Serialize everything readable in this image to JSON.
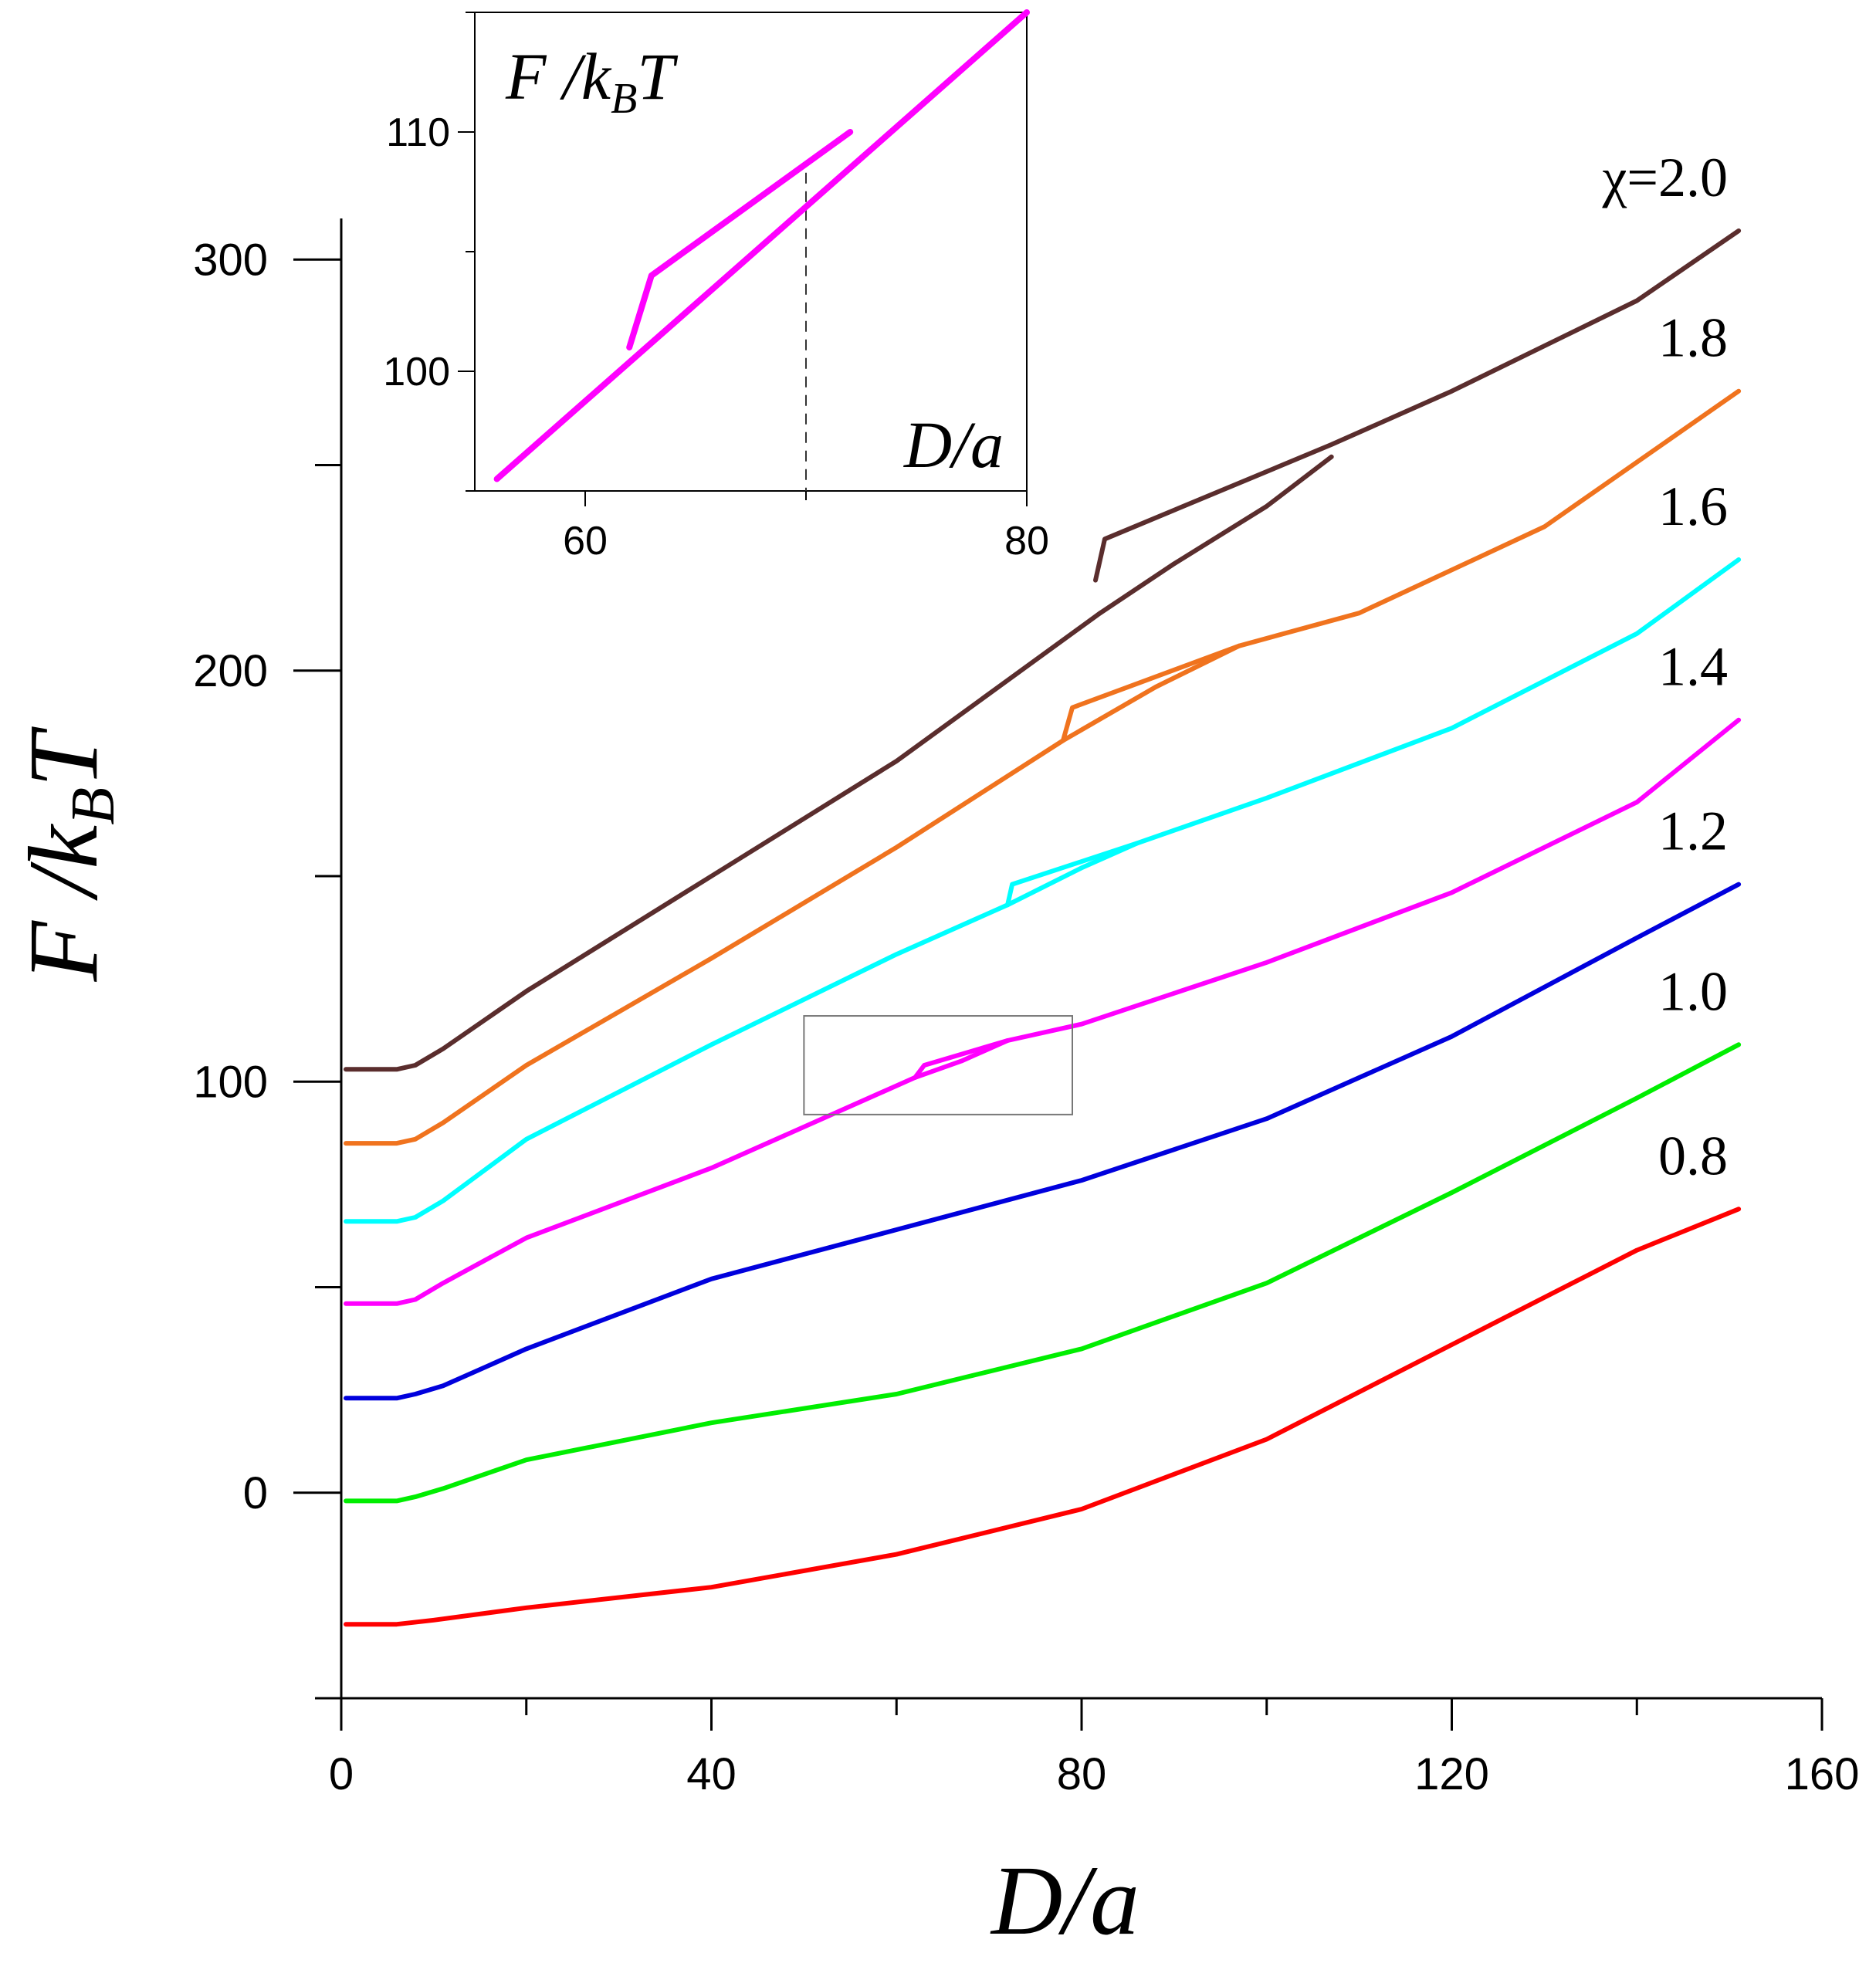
{
  "chart_data": [
    {
      "type": "line",
      "xlabel": "D/a",
      "ylabel": "F /k_BT",
      "ylabel_parts": {
        "f": "F /k",
        "sub": "B",
        "t": "T"
      },
      "xlim": [
        0,
        160
      ],
      "ylim": [
        -50,
        310
      ],
      "x_ticks": [
        0,
        40,
        80,
        120,
        160
      ],
      "x_tick_labels": [
        "0",
        "40",
        "80",
        "120",
        "160"
      ],
      "x_minor_ticks": [
        20,
        60,
        100,
        140
      ],
      "y_ticks": [
        0,
        100,
        200,
        300
      ],
      "y_tick_labels": [
        "0",
        "100",
        "200",
        "300"
      ],
      "y_minor_ticks": [
        -50,
        50,
        150,
        250
      ],
      "zoom_box": {
        "x": [
          50,
          79
        ],
        "y": [
          92,
          116
        ]
      },
      "series": [
        {
          "name": "χ=2.0",
          "label": "χ=2.0",
          "color": "#5a2d2d",
          "points": [
            [
              0.5,
              103
            ],
            [
              6,
              103
            ],
            [
              8,
              104
            ],
            [
              11,
              108
            ],
            [
              20,
              122
            ],
            [
              40,
              150
            ],
            [
              60,
              178
            ],
            [
              82,
              214
            ]
          ],
          "branch_upper": [
            [
              81.5,
              222
            ],
            [
              82.5,
              232
            ],
            [
              107,
              255
            ],
            [
              120,
              268
            ],
            [
              140,
              290
            ],
            [
              151,
              307
            ]
          ],
          "branch_lower": [
            [
              82,
              214
            ],
            [
              90,
              226
            ],
            [
              100,
              240
            ],
            [
              107,
              252
            ]
          ]
        },
        {
          "name": "1.8",
          "label": "1.8",
          "color": "#f0731e",
          "points": [
            [
              0.5,
              85
            ],
            [
              6,
              85
            ],
            [
              8,
              86
            ],
            [
              11,
              90
            ],
            [
              20,
              104
            ],
            [
              40,
              130
            ],
            [
              60,
              157
            ],
            [
              78,
              183
            ]
          ],
          "branch_upper": [
            [
              78,
              183
            ],
            [
              79,
              191
            ],
            [
              97,
              206
            ],
            [
              110,
              214
            ],
            [
              130,
              235
            ],
            [
              151,
              268
            ]
          ],
          "branch_lower": [
            [
              78,
              183
            ],
            [
              88,
              196
            ],
            [
              97,
              206
            ]
          ]
        },
        {
          "name": "1.6",
          "label": "1.6",
          "color": "#00ffff",
          "points": [
            [
              0.5,
              66
            ],
            [
              6,
              66
            ],
            [
              8,
              67
            ],
            [
              11,
              71
            ],
            [
              20,
              86
            ],
            [
              40,
              109
            ],
            [
              60,
              131
            ],
            [
              72,
              143
            ]
          ],
          "branch_upper": [
            [
              72,
              143
            ],
            [
              72.5,
              148
            ],
            [
              86,
              158
            ],
            [
              100,
              169
            ],
            [
              120,
              186
            ],
            [
              140,
              209
            ],
            [
              151,
              227
            ]
          ],
          "branch_lower": [
            [
              72,
              143
            ],
            [
              80,
              152
            ],
            [
              86,
              158
            ]
          ]
        },
        {
          "name": "1.4",
          "label": "1.4",
          "color": "#ff00ff",
          "points": [
            [
              0.5,
              46
            ],
            [
              6,
              46
            ],
            [
              8,
              47
            ],
            [
              11,
              51
            ],
            [
              20,
              62
            ],
            [
              40,
              79
            ],
            [
              62,
              101
            ]
          ],
          "branch_upper": [
            [
              62,
              101
            ],
            [
              63,
              104
            ],
            [
              72,
              110
            ],
            [
              80,
              114
            ],
            [
              100,
              129
            ],
            [
              120,
              146
            ],
            [
              140,
              168
            ],
            [
              151,
              188
            ]
          ],
          "branch_lower": [
            [
              62,
              101
            ],
            [
              67,
              105
            ],
            [
              72,
              110
            ]
          ]
        },
        {
          "name": "1.2",
          "label": "1.2",
          "color": "#0000dd",
          "points": [
            [
              0.5,
              23
            ],
            [
              6,
              23
            ],
            [
              8,
              24
            ],
            [
              11,
              26
            ],
            [
              20,
              35
            ],
            [
              40,
              52
            ],
            [
              60,
              64
            ],
            [
              80,
              76
            ],
            [
              100,
              91
            ],
            [
              120,
              111
            ],
            [
              140,
              135
            ],
            [
              151,
              148
            ]
          ]
        },
        {
          "name": "1.0",
          "label": "1.0",
          "color": "#00ee00",
          "points": [
            [
              0.5,
              -2
            ],
            [
              6,
              -2
            ],
            [
              8,
              -1
            ],
            [
              11,
              1
            ],
            [
              20,
              8
            ],
            [
              40,
              17
            ],
            [
              60,
              24
            ],
            [
              80,
              35
            ],
            [
              100,
              51
            ],
            [
              120,
              73
            ],
            [
              140,
              96
            ],
            [
              151,
              109
            ]
          ]
        },
        {
          "name": "0.8",
          "label": "0.8",
          "color": "#ff0000",
          "points": [
            [
              0.5,
              -32
            ],
            [
              6,
              -32
            ],
            [
              10,
              -31
            ],
            [
              20,
              -28
            ],
            [
              40,
              -23
            ],
            [
              60,
              -15
            ],
            [
              80,
              -4
            ],
            [
              100,
              13
            ],
            [
              120,
              36
            ],
            [
              140,
              59
            ],
            [
              151,
              69
            ]
          ]
        }
      ]
    },
    {
      "type": "line",
      "role": "inset",
      "xlabel": "D/a",
      "ylabel": "F /k_BT",
      "ylabel_parts": {
        "f": "F /k",
        "sub": "B",
        "t": "T"
      },
      "xlim": [
        55,
        80
      ],
      "ylim": [
        95,
        115
      ],
      "x_ticks": [
        60,
        80
      ],
      "x_tick_labels": [
        "60",
        "80"
      ],
      "x_minor_ticks": [
        70
      ],
      "y_ticks": [
        100,
        110
      ],
      "y_tick_labels": [
        "100",
        "110"
      ],
      "y_minor_ticks": [
        95,
        105,
        115
      ],
      "vline_x": 70,
      "series": [
        {
          "name": "1.4",
          "color": "#ff00ff",
          "points": [
            [
              56,
              95.5
            ],
            [
              80,
              115
            ]
          ],
          "branch_upper": [
            [
              62,
              101
            ],
            [
              63,
              104
            ],
            [
              72,
              110
            ]
          ]
        }
      ]
    }
  ]
}
